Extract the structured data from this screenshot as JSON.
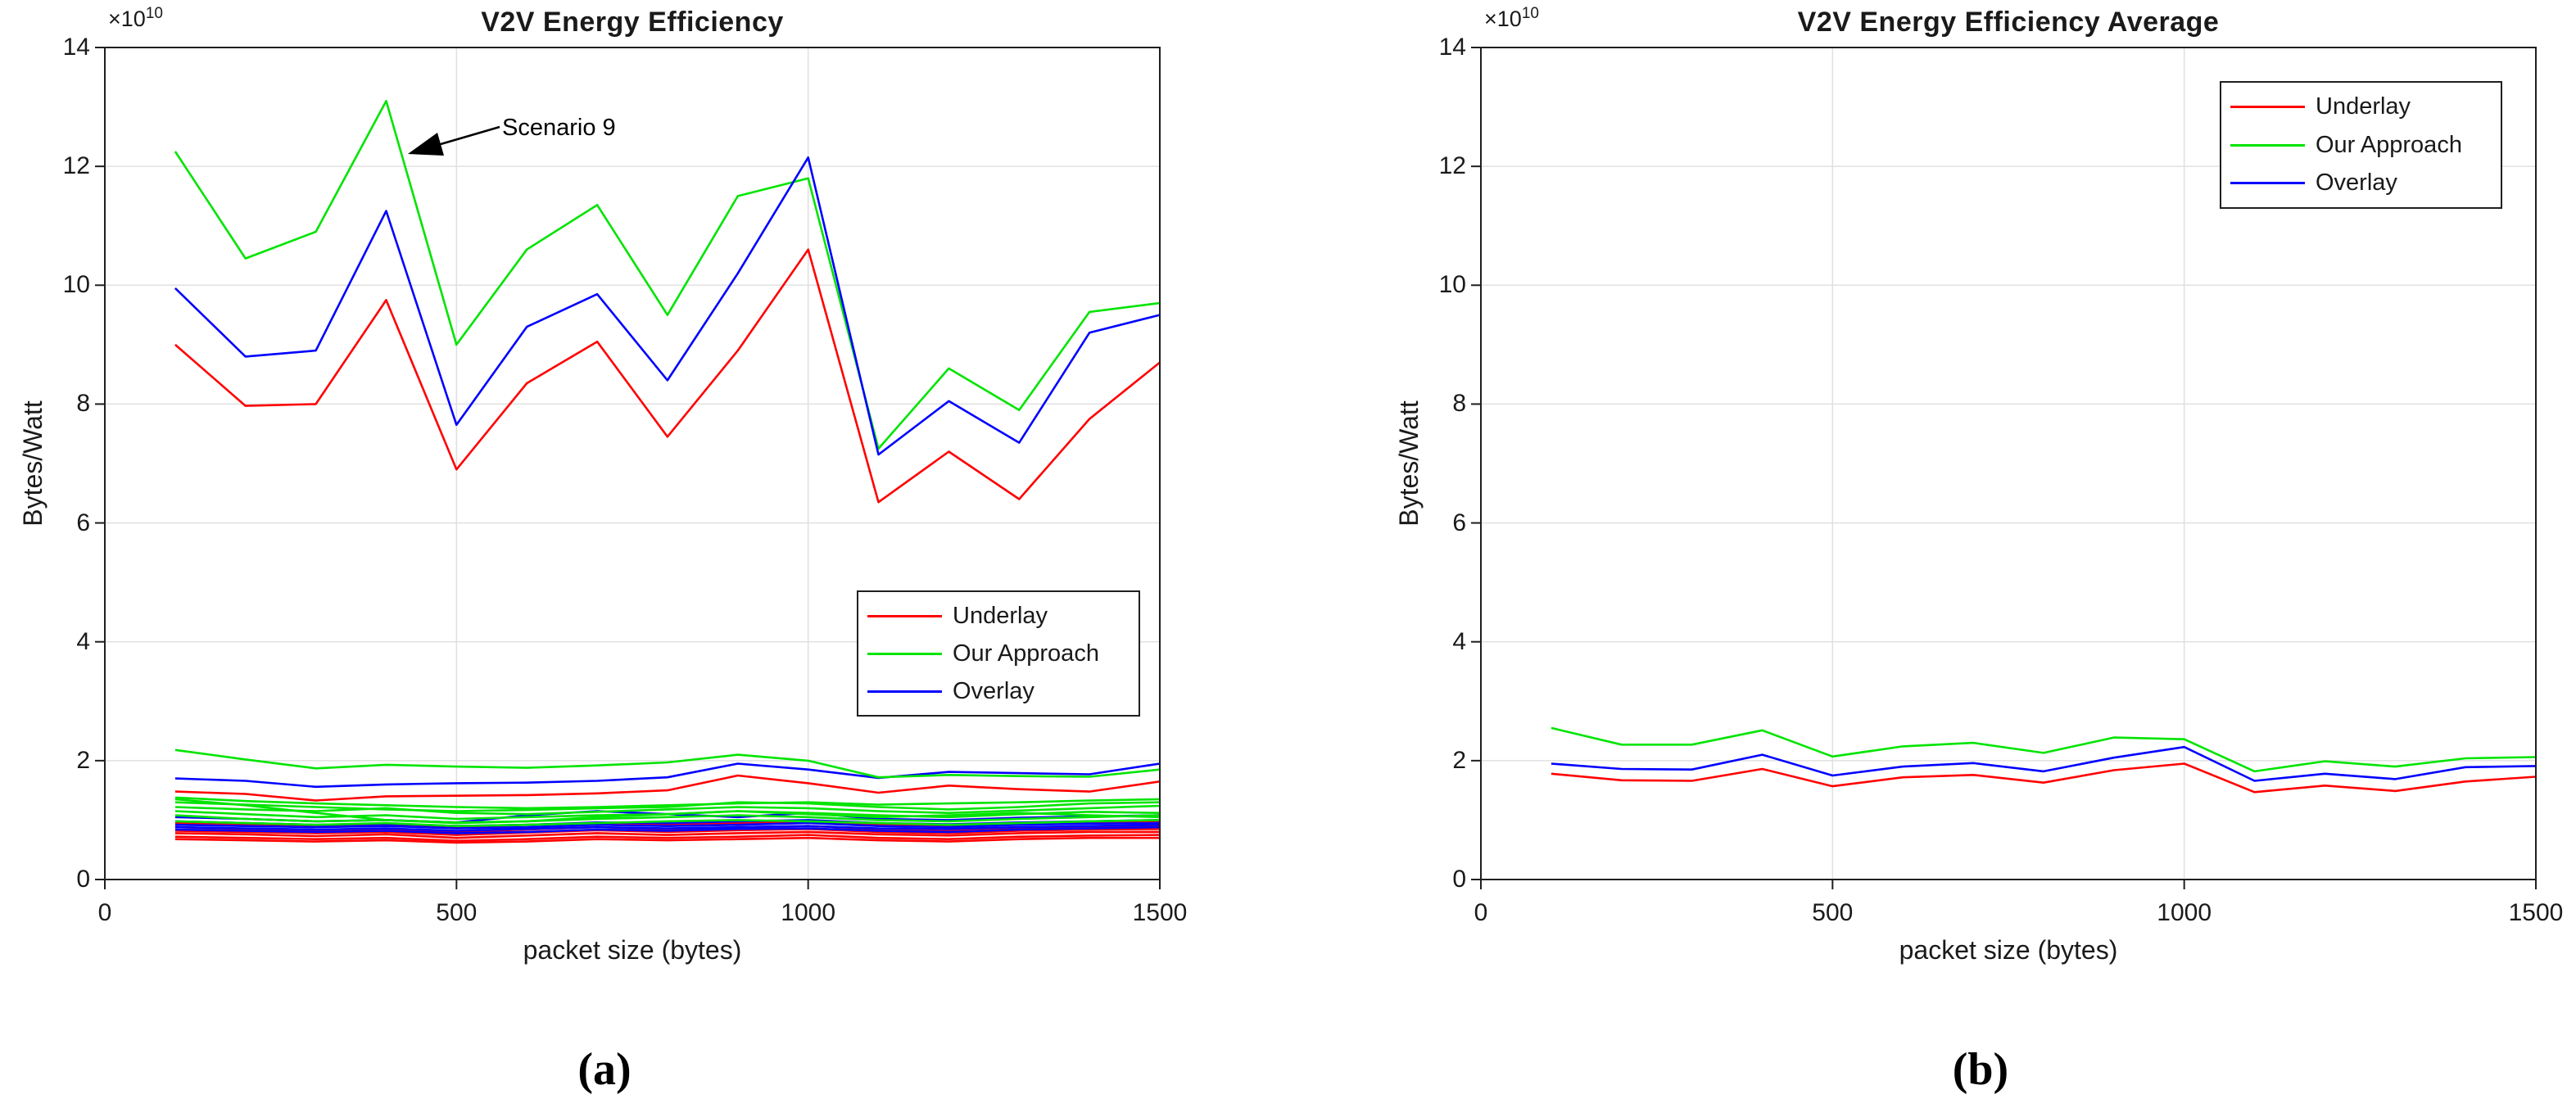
{
  "legend": {
    "items": [
      {
        "label": "Underlay",
        "color": "#ff0000"
      },
      {
        "label": "Our Approach",
        "color": "#00e400"
      },
      {
        "label": "Overlay",
        "color": "#0000ff"
      }
    ]
  },
  "captions": {
    "a": "(a)",
    "b": "(b)"
  },
  "colors": {
    "red": "#ff0000",
    "green": "#00e400",
    "blue": "#0000ff",
    "grid": "#e0e0e0",
    "axis": "#1f1f1f"
  },
  "chart_data": [
    {
      "type": "line",
      "title": "V2V Energy Efficiency",
      "xlabel": "packet size (bytes)",
      "ylabel": "Bytes/Watt",
      "y_multiplier_base": "×10",
      "y_multiplier_exp": "10",
      "xlim": [
        0,
        1500
      ],
      "ylim": [
        0,
        14
      ],
      "x_ticks": [
        0,
        500,
        1000,
        1500
      ],
      "y_ticks": [
        0,
        2,
        4,
        6,
        8,
        10,
        12,
        14
      ],
      "grid": true,
      "legend_position": "middle-right",
      "annotation": {
        "text": "Scenario 9"
      },
      "x": [
        100,
        200,
        300,
        400,
        500,
        600,
        700,
        800,
        900,
        1000,
        1100,
        1200,
        1300,
        1400,
        1500
      ],
      "series": [
        {
          "name": "Underlay scenario cluster 1",
          "color": "#ff0000",
          "values": [
            0.95,
            0.92,
            0.9,
            0.92,
            0.88,
            0.92,
            0.95,
            0.92,
            0.95,
            0.98,
            0.92,
            0.9,
            0.94,
            0.96,
            0.98
          ]
        },
        {
          "name": "Underlay scenario cluster 2",
          "color": "#ff0000",
          "values": [
            0.88,
            0.85,
            0.83,
            0.85,
            0.8,
            0.84,
            0.88,
            0.85,
            0.88,
            0.9,
            0.85,
            0.83,
            0.87,
            0.88,
            0.9
          ]
        },
        {
          "name": "Underlay scenario cluster 3",
          "color": "#ff0000",
          "values": [
            0.82,
            0.8,
            0.78,
            0.8,
            0.75,
            0.79,
            0.83,
            0.8,
            0.83,
            0.85,
            0.8,
            0.78,
            0.82,
            0.84,
            0.85
          ]
        },
        {
          "name": "Underlay scenario cluster 4",
          "color": "#ff0000",
          "values": [
            0.78,
            0.76,
            0.73,
            0.76,
            0.7,
            0.74,
            0.78,
            0.75,
            0.78,
            0.8,
            0.76,
            0.74,
            0.78,
            0.8,
            0.8
          ]
        },
        {
          "name": "Underlay scenario cluster 5",
          "color": "#ff0000",
          "values": [
            0.72,
            0.7,
            0.68,
            0.7,
            0.65,
            0.68,
            0.72,
            0.7,
            0.72,
            0.75,
            0.7,
            0.68,
            0.72,
            0.74,
            0.75
          ]
        },
        {
          "name": "Underlay scenario cluster 6",
          "color": "#ff0000",
          "values": [
            0.68,
            0.66,
            0.64,
            0.66,
            0.62,
            0.64,
            0.68,
            0.66,
            0.68,
            0.7,
            0.66,
            0.64,
            0.68,
            0.7,
            0.7
          ]
        },
        {
          "name": "Overlay scenario cluster 1",
          "color": "#0000ff",
          "values": [
            1.05,
            1.02,
            0.98,
            1.0,
            0.96,
            1.08,
            1.15,
            1.1,
            1.05,
            1.12,
            1.02,
            1.0,
            1.04,
            1.06,
            1.08
          ]
        },
        {
          "name": "Overlay scenario cluster 2",
          "color": "#0000ff",
          "values": [
            0.98,
            0.95,
            0.92,
            0.94,
            0.9,
            0.92,
            0.96,
            0.95,
            0.98,
            1.0,
            0.95,
            0.93,
            0.96,
            0.98,
            1.0
          ]
        },
        {
          "name": "Overlay scenario cluster 3",
          "color": "#0000ff",
          "values": [
            0.92,
            0.9,
            0.88,
            0.9,
            0.86,
            0.88,
            0.92,
            0.9,
            0.92,
            0.95,
            0.9,
            0.88,
            0.92,
            0.94,
            0.95
          ]
        },
        {
          "name": "Overlay scenario cluster 4",
          "color": "#0000ff",
          "values": [
            0.88,
            0.86,
            0.84,
            0.86,
            0.82,
            0.85,
            0.88,
            0.86,
            0.88,
            0.9,
            0.86,
            0.85,
            0.88,
            0.9,
            0.92
          ]
        },
        {
          "name": "Overlay scenario cluster 5",
          "color": "#0000ff",
          "values": [
            0.84,
            0.82,
            0.8,
            0.82,
            0.78,
            0.8,
            0.84,
            0.82,
            0.85,
            0.86,
            0.82,
            0.8,
            0.84,
            0.86,
            0.88
          ]
        },
        {
          "name": "Our Approach scenario cluster 1",
          "color": "#00e400",
          "values": [
            1.38,
            1.32,
            1.28,
            1.25,
            1.22,
            1.2,
            1.22,
            1.25,
            1.28,
            1.3,
            1.26,
            1.28,
            1.3,
            1.33,
            1.35
          ]
        },
        {
          "name": "Our Approach scenario cluster 2",
          "color": "#00e400",
          "values": [
            1.3,
            1.26,
            1.22,
            1.18,
            1.15,
            1.17,
            1.2,
            1.22,
            1.3,
            1.28,
            1.22,
            1.18,
            1.22,
            1.28,
            1.3
          ]
        },
        {
          "name": "Our Approach scenario cluster 3",
          "color": "#00e400",
          "values": [
            1.22,
            1.18,
            1.15,
            1.2,
            1.12,
            1.1,
            1.14,
            1.18,
            1.22,
            1.2,
            1.15,
            1.12,
            1.16,
            1.2,
            1.24
          ]
        },
        {
          "name": "Our Approach scenario cluster 4",
          "color": "#00e400",
          "values": [
            1.15,
            1.1,
            1.05,
            1.08,
            1.02,
            1.05,
            1.08,
            1.1,
            1.15,
            1.12,
            1.08,
            1.05,
            1.1,
            1.14,
            1.12
          ]
        },
        {
          "name": "Our Approach scenario cluster 5",
          "color": "#00e400",
          "values": [
            1.08,
            1.02,
            0.98,
            1.0,
            0.96,
            0.98,
            1.02,
            1.05,
            1.08,
            1.05,
            1.0,
            0.98,
            1.02,
            1.05,
            1.08
          ]
        },
        {
          "name": "Our Approach scenario cluster 6",
          "color": "#00e400",
          "values": [
            0.98,
            0.95,
            0.92,
            0.95,
            0.9,
            0.92,
            0.95,
            0.98,
            1.0,
            0.98,
            0.95,
            0.92,
            0.95,
            0.98,
            1.0
          ]
        },
        {
          "name": "Our Approach scenario cluster 7",
          "color": "#00e400",
          "values": [
            1.35,
            1.25,
            1.12,
            1.0,
            0.95,
            0.98,
            1.05,
            1.1,
            1.15,
            1.1,
            1.05,
            1.08,
            1.12,
            1.08,
            1.05
          ]
        },
        {
          "name": "Underlay upper",
          "color": "#ff0000",
          "values": [
            1.48,
            1.44,
            1.33,
            1.4,
            1.41,
            1.42,
            1.45,
            1.5,
            1.75,
            1.62,
            1.46,
            1.58,
            1.52,
            1.48,
            1.65
          ]
        },
        {
          "name": "Overlay upper",
          "color": "#0000ff",
          "values": [
            1.7,
            1.66,
            1.56,
            1.6,
            1.62,
            1.63,
            1.66,
            1.72,
            1.95,
            1.85,
            1.71,
            1.81,
            1.79,
            1.77,
            1.95
          ]
        },
        {
          "name": "Our Approach upper",
          "color": "#00e400",
          "values": [
            2.18,
            2.02,
            1.87,
            1.93,
            1.9,
            1.88,
            1.92,
            1.97,
            2.1,
            2.0,
            1.72,
            1.76,
            1.74,
            1.73,
            1.85
          ]
        },
        {
          "name": "Underlay Scenario 9",
          "color": "#ff0000",
          "values": [
            9.0,
            7.97,
            8.0,
            9.75,
            6.9,
            8.35,
            9.05,
            7.45,
            8.9,
            10.6,
            6.35,
            7.2,
            6.4,
            7.75,
            8.7
          ]
        },
        {
          "name": "Our Approach Scenario 9",
          "color": "#00e400",
          "values": [
            12.25,
            10.45,
            10.9,
            13.1,
            9.0,
            10.6,
            11.35,
            9.5,
            11.5,
            11.8,
            7.25,
            8.6,
            7.9,
            9.55,
            9.7
          ]
        },
        {
          "name": "Overlay Scenario 9",
          "color": "#0000ff",
          "values": [
            9.95,
            8.8,
            8.9,
            11.25,
            7.65,
            9.3,
            9.85,
            8.4,
            10.2,
            12.15,
            7.15,
            8.05,
            7.35,
            9.2,
            9.5
          ]
        }
      ]
    },
    {
      "type": "line",
      "title": "V2V Energy Efficiency Average",
      "xlabel": "packet size (bytes)",
      "ylabel": "Bytes/Watt",
      "y_multiplier_base": "×10",
      "y_multiplier_exp": "10",
      "xlim": [
        0,
        1500
      ],
      "ylim": [
        0,
        14
      ],
      "x_ticks": [
        0,
        500,
        1000,
        1500
      ],
      "y_ticks": [
        0,
        2,
        4,
        6,
        8,
        10,
        12,
        14
      ],
      "grid": true,
      "legend_position": "top-right",
      "x": [
        100,
        200,
        300,
        400,
        500,
        600,
        700,
        800,
        900,
        1000,
        1100,
        1200,
        1300,
        1400,
        1500
      ],
      "series": [
        {
          "name": "Underlay average",
          "color": "#ff0000",
          "values": [
            1.78,
            1.67,
            1.66,
            1.86,
            1.57,
            1.72,
            1.76,
            1.63,
            1.84,
            1.95,
            1.47,
            1.58,
            1.49,
            1.65,
            1.73
          ]
        },
        {
          "name": "Our Approach average",
          "color": "#00e400",
          "values": [
            2.55,
            2.27,
            2.27,
            2.51,
            2.07,
            2.24,
            2.3,
            2.13,
            2.39,
            2.36,
            1.82,
            1.99,
            1.9,
            2.04,
            2.06
          ]
        },
        {
          "name": "Overlay average",
          "color": "#0000ff",
          "values": [
            1.95,
            1.86,
            1.85,
            2.1,
            1.75,
            1.9,
            1.96,
            1.82,
            2.05,
            2.23,
            1.66,
            1.78,
            1.69,
            1.89,
            1.91
          ]
        }
      ]
    }
  ]
}
